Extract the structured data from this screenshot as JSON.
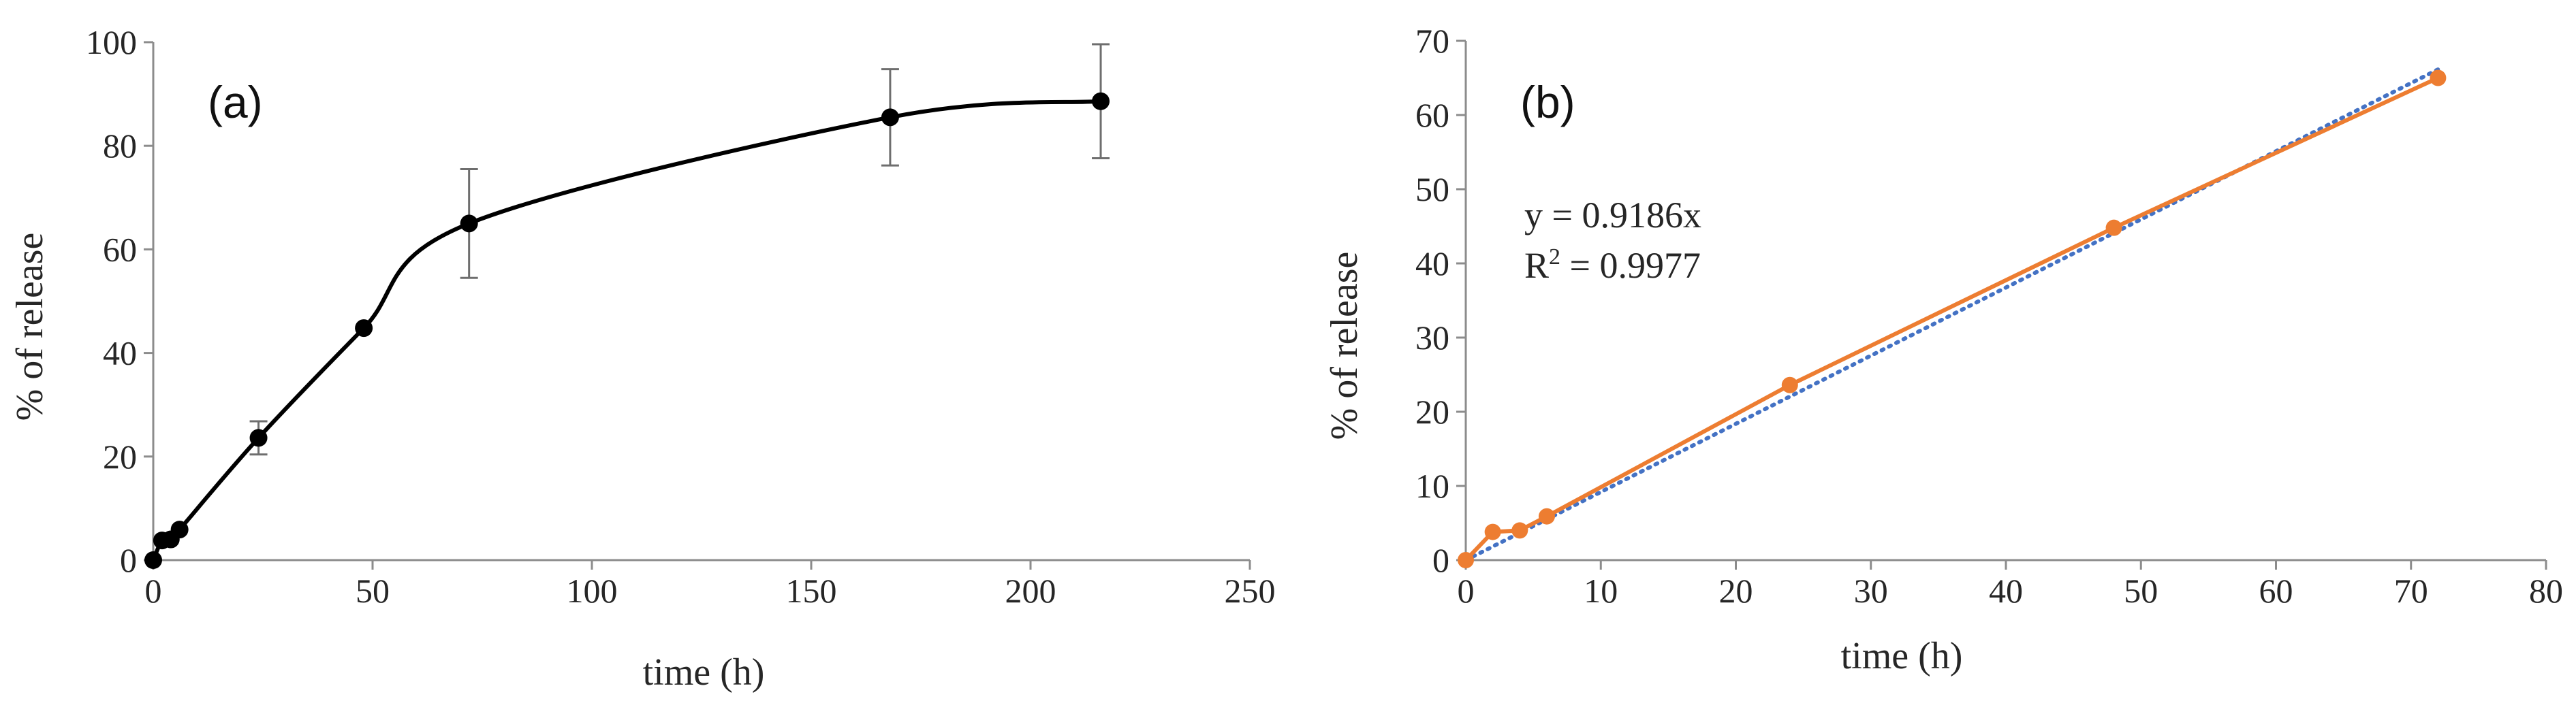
{
  "chart_data": [
    {
      "type": "line",
      "panel_label": "(a)",
      "xlabel": "time (h)",
      "ylabel": "% of release",
      "xlim": [
        0,
        250
      ],
      "ylim": [
        0,
        100
      ],
      "xticks": [
        0,
        50,
        100,
        150,
        200,
        250
      ],
      "yticks": [
        0,
        20,
        40,
        60,
        80,
        100
      ],
      "grid": false,
      "series": [
        {
          "name": "release",
          "x": [
            0,
            2,
            4,
            6,
            24,
            48,
            72,
            168,
            216
          ],
          "y": [
            0,
            3.8,
            4.0,
            5.9,
            23.6,
            44.8,
            65.0,
            85.5,
            88.6
          ],
          "yerr": [
            0,
            0,
            0,
            0,
            3.2,
            0,
            10.5,
            9.3,
            11.0
          ],
          "color": "#000000",
          "smooth": true
        }
      ]
    },
    {
      "type": "scatter",
      "panel_label": "(b)",
      "xlabel": "time (h)",
      "ylabel": "% of release",
      "xlim": [
        0,
        80
      ],
      "ylim": [
        0,
        70
      ],
      "xticks": [
        0,
        10,
        20,
        30,
        40,
        50,
        60,
        70,
        80
      ],
      "yticks": [
        0,
        10,
        20,
        30,
        40,
        50,
        60,
        70
      ],
      "grid": false,
      "annotations": {
        "equation": "y = 0.9186x",
        "r2_prefix": "R",
        "r2_sup": "2",
        "r2_rest": " = 0.9977"
      },
      "series": [
        {
          "name": "release",
          "x": [
            0,
            2,
            4,
            6,
            24,
            48,
            72
          ],
          "y": [
            0,
            3.8,
            4.0,
            5.9,
            23.6,
            44.8,
            65.0
          ],
          "color": "#ed7d31"
        },
        {
          "name": "linear fit",
          "slope": 0.9186,
          "color": "#4472c4",
          "style": "dotted"
        }
      ]
    }
  ]
}
